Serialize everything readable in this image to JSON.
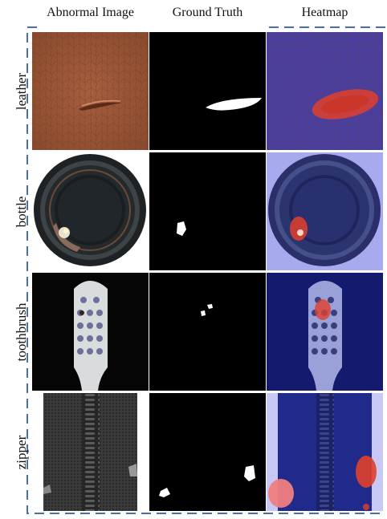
{
  "columns": [
    "Abnormal Image",
    "Ground Truth",
    "Heatmap"
  ],
  "rows": [
    {
      "label": "leather"
    },
    {
      "label": "bottle"
    },
    {
      "label": "toothbrush"
    },
    {
      "label": "zipper"
    }
  ],
  "colors": {
    "frame_dash": "#4a6db0",
    "leather": "#9a5638",
    "heatmap_blue": "#3b3fb8",
    "heatmap_red": "#e0402a"
  }
}
